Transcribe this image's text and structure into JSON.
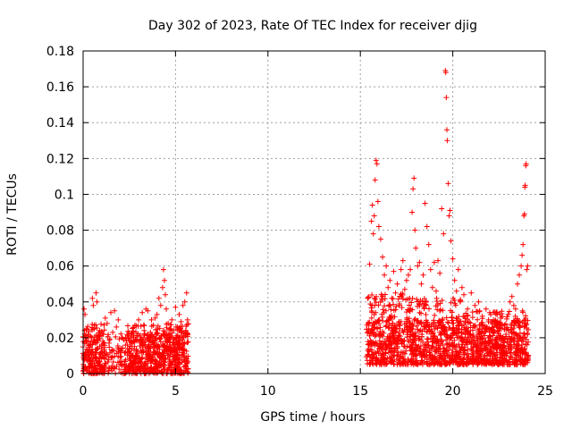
{
  "chart_data": {
    "type": "scatter",
    "title": "Day 302 of 2023, Rate Of TEC Index for receiver djig",
    "xlabel": "GPS time / hours",
    "ylabel": "ROTI / TECUs",
    "xlim": [
      0,
      25
    ],
    "ylim": [
      0,
      0.18
    ],
    "xticks": [
      0,
      5,
      10,
      15,
      20,
      25
    ],
    "xtick_labels": [
      "0",
      "5",
      "10",
      "15",
      "20",
      "25"
    ],
    "yticks": [
      0,
      0.02,
      0.04,
      0.06,
      0.08,
      0.1,
      0.12,
      0.14,
      0.16,
      0.18
    ],
    "ytick_labels": [
      "0",
      "0.02",
      "0.04",
      "0.06",
      "0.08",
      "0.1",
      "0.12",
      "0.14",
      "0.16",
      "0.18"
    ],
    "grid": true,
    "marker": "plus",
    "color": "#ff0000",
    "series": [
      {
        "points": [
          [
            0.05,
            0.036
          ],
          [
            0.1,
            0.033
          ],
          [
            0.12,
            0.012
          ],
          [
            0.2,
            0.025
          ],
          [
            0.3,
            0.018
          ],
          [
            0.4,
            0.021
          ],
          [
            0.5,
            0.042
          ],
          [
            0.55,
            0.038
          ],
          [
            0.6,
            0.027
          ],
          [
            0.7,
            0.045
          ],
          [
            0.75,
            0.04
          ],
          [
            0.8,
            0.019
          ],
          [
            0.9,
            0.024
          ],
          [
            1.0,
            0.014
          ],
          [
            1.1,
            0.022
          ],
          [
            1.2,
            0.031
          ],
          [
            1.3,
            0.028
          ],
          [
            1.4,
            0.017
          ],
          [
            1.5,
            0.034
          ],
          [
            1.6,
            0.023
          ],
          [
            1.7,
            0.035
          ],
          [
            1.8,
            0.026
          ],
          [
            1.9,
            0.03
          ],
          [
            2.0,
            0.012
          ],
          [
            2.1,
            0.02
          ],
          [
            2.2,
            0.019
          ],
          [
            2.4,
            0.016
          ],
          [
            2.6,
            0.022
          ],
          [
            2.8,
            0.027
          ],
          [
            3.0,
            0.03
          ],
          [
            3.1,
            0.018
          ],
          [
            3.2,
            0.034
          ],
          [
            3.3,
            0.024
          ],
          [
            3.4,
            0.036
          ],
          [
            3.5,
            0.035
          ],
          [
            3.6,
            0.02
          ],
          [
            3.7,
            0.03
          ],
          [
            3.8,
            0.027
          ],
          [
            3.9,
            0.031
          ],
          [
            4.0,
            0.033
          ],
          [
            4.1,
            0.042
          ],
          [
            4.2,
            0.038
          ],
          [
            4.3,
            0.048
          ],
          [
            4.35,
            0.058
          ],
          [
            4.4,
            0.052
          ],
          [
            4.45,
            0.044
          ],
          [
            4.5,
            0.036
          ],
          [
            4.6,
            0.028
          ],
          [
            4.7,
            0.025
          ],
          [
            4.8,
            0.03
          ],
          [
            4.9,
            0.024
          ],
          [
            5.0,
            0.037
          ],
          [
            5.1,
            0.026
          ],
          [
            5.2,
            0.033
          ],
          [
            5.3,
            0.029
          ],
          [
            5.4,
            0.038
          ],
          [
            5.5,
            0.04
          ],
          [
            5.6,
            0.045
          ],
          [
            5.65,
            0.03
          ],
          [
            15.4,
            0.042
          ],
          [
            15.5,
            0.061
          ],
          [
            15.6,
            0.085
          ],
          [
            15.65,
            0.094
          ],
          [
            15.7,
            0.078
          ],
          [
            15.75,
            0.088
          ],
          [
            15.8,
            0.108
          ],
          [
            15.85,
            0.119
          ],
          [
            15.9,
            0.117
          ],
          [
            15.95,
            0.096
          ],
          [
            16.0,
            0.082
          ],
          [
            16.1,
            0.075
          ],
          [
            16.2,
            0.065
          ],
          [
            16.3,
            0.055
          ],
          [
            16.4,
            0.06
          ],
          [
            16.5,
            0.048
          ],
          [
            16.6,
            0.052
          ],
          [
            16.7,
            0.042
          ],
          [
            16.8,
            0.057
          ],
          [
            16.9,
            0.045
          ],
          [
            17.0,
            0.05
          ],
          [
            17.1,
            0.038
          ],
          [
            17.2,
            0.058
          ],
          [
            17.3,
            0.063
          ],
          [
            17.4,
            0.047
          ],
          [
            17.5,
            0.052
          ],
          [
            17.6,
            0.055
          ],
          [
            17.7,
            0.058
          ],
          [
            17.8,
            0.09
          ],
          [
            17.85,
            0.103
          ],
          [
            17.9,
            0.109
          ],
          [
            17.95,
            0.08
          ],
          [
            18.0,
            0.07
          ],
          [
            18.1,
            0.06
          ],
          [
            18.2,
            0.062
          ],
          [
            18.3,
            0.05
          ],
          [
            18.4,
            0.055
          ],
          [
            18.5,
            0.095
          ],
          [
            18.6,
            0.082
          ],
          [
            18.7,
            0.072
          ],
          [
            18.8,
            0.058
          ],
          [
            18.9,
            0.048
          ],
          [
            19.0,
            0.062
          ],
          [
            19.1,
            0.046
          ],
          [
            19.2,
            0.063
          ],
          [
            19.3,
            0.056
          ],
          [
            19.4,
            0.092
          ],
          [
            19.5,
            0.078
          ],
          [
            19.6,
            0.169
          ],
          [
            19.62,
            0.168
          ],
          [
            19.65,
            0.154
          ],
          [
            19.68,
            0.136
          ],
          [
            19.7,
            0.13
          ],
          [
            19.75,
            0.106
          ],
          [
            19.8,
            0.088
          ],
          [
            19.85,
            0.091
          ],
          [
            19.9,
            0.074
          ],
          [
            20.0,
            0.064
          ],
          [
            20.1,
            0.052
          ],
          [
            20.2,
            0.046
          ],
          [
            20.3,
            0.058
          ],
          [
            20.4,
            0.04
          ],
          [
            20.5,
            0.048
          ],
          [
            20.6,
            0.044
          ],
          [
            20.8,
            0.036
          ],
          [
            21.0,
            0.045
          ],
          [
            21.2,
            0.038
          ],
          [
            21.4,
            0.04
          ],
          [
            21.6,
            0.032
          ],
          [
            21.8,
            0.036
          ],
          [
            22.0,
            0.034
          ],
          [
            22.2,
            0.03
          ],
          [
            22.4,
            0.028
          ],
          [
            22.6,
            0.031
          ],
          [
            22.8,
            0.025
          ],
          [
            23.0,
            0.033
          ],
          [
            23.1,
            0.04
          ],
          [
            23.2,
            0.043
          ],
          [
            23.3,
            0.038
          ],
          [
            23.4,
            0.036
          ],
          [
            23.5,
            0.05
          ],
          [
            23.6,
            0.055
          ],
          [
            23.7,
            0.06
          ],
          [
            23.75,
            0.066
          ],
          [
            23.8,
            0.072
          ],
          [
            23.85,
            0.088
          ],
          [
            23.88,
            0.089
          ],
          [
            23.9,
            0.104
          ],
          [
            23.92,
            0.105
          ],
          [
            23.95,
            0.116
          ],
          [
            23.97,
            0.117
          ],
          [
            24.0,
            0.058
          ],
          [
            24.05,
            0.06
          ]
        ],
        "dense_bands": [
          {
            "x": [
              0.0,
              5.7
            ],
            "y": [
              0.0,
              0.023
            ]
          },
          {
            "x": [
              0.0,
              1.2
            ],
            "y": [
              0.0,
              0.028
            ]
          },
          {
            "x": [
              2.4,
              5.7
            ],
            "y": [
              0.0,
              0.028
            ]
          },
          {
            "x": [
              15.3,
              24.1
            ],
            "y": [
              0.005,
              0.03
            ]
          },
          {
            "x": [
              15.4,
              17.5
            ],
            "y": [
              0.005,
              0.045
            ]
          },
          {
            "x": [
              17.5,
              20.5
            ],
            "y": [
              0.005,
              0.042
            ]
          },
          {
            "x": [
              20.5,
              24.1
            ],
            "y": [
              0.005,
              0.035
            ]
          }
        ]
      }
    ]
  }
}
